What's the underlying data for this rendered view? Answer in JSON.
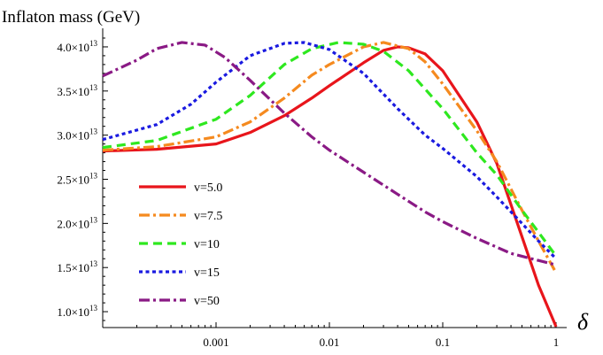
{
  "chart_data": {
    "type": "line",
    "title": "Inflaton mass (GeV)",
    "xlabel": "δ",
    "ylabel": "",
    "x_scale": "log",
    "xlim": [
      0.0001,
      1
    ],
    "ylim": [
      8200000000000.0,
      41500000000000.0
    ],
    "x_ticks": [
      {
        "value": 0.001,
        "label": "0.001"
      },
      {
        "value": 0.01,
        "label": "0.01"
      },
      {
        "value": 0.1,
        "label": "0.1"
      },
      {
        "value": 1,
        "label": "1"
      }
    ],
    "y_ticks": [
      {
        "value": 10000000000000.0,
        "label_mantissa": "1.0",
        "label_exp": "13"
      },
      {
        "value": 15000000000000.0,
        "label_mantissa": "1.5",
        "label_exp": "13"
      },
      {
        "value": 20000000000000.0,
        "label_mantissa": "2.0",
        "label_exp": "13"
      },
      {
        "value": 25000000000000.0,
        "label_mantissa": "2.5",
        "label_exp": "13"
      },
      {
        "value": 30000000000000.0,
        "label_mantissa": "3.0",
        "label_exp": "13"
      },
      {
        "value": 35000000000000.0,
        "label_mantissa": "3.5",
        "label_exp": "13"
      },
      {
        "value": 40000000000000.0,
        "label_mantissa": "4.0",
        "label_exp": "13"
      }
    ],
    "legend_position": "left",
    "series": [
      {
        "name": "v=5.0",
        "color": "#e8151b",
        "style": "solid",
        "points": [
          [
            0.0001,
            28200000000000.0
          ],
          [
            0.0003,
            28400000000000.0
          ],
          [
            0.001,
            29000000000000.0
          ],
          [
            0.002,
            30300000000000.0
          ],
          [
            0.004,
            32200000000000.0
          ],
          [
            0.007,
            34200000000000.0
          ],
          [
            0.01,
            35600000000000.0
          ],
          [
            0.02,
            38200000000000.0
          ],
          [
            0.03,
            39600000000000.0
          ],
          [
            0.04,
            40000000000000.0
          ],
          [
            0.05,
            39900000000000.0
          ],
          [
            0.07,
            39200000000000.0
          ],
          [
            0.1,
            37300000000000.0
          ],
          [
            0.2,
            31500000000000.0
          ],
          [
            0.3,
            26800000000000.0
          ],
          [
            0.5,
            18500000000000.0
          ],
          [
            0.7,
            13000000000000.0
          ],
          [
            1,
            8300000000000.0
          ]
        ]
      },
      {
        "name": "v=7.5",
        "color": "#f58a1f",
        "style": "dashdot",
        "points": [
          [
            0.0001,
            28300000000000.0
          ],
          [
            0.0003,
            28700000000000.0
          ],
          [
            0.001,
            29800000000000.0
          ],
          [
            0.002,
            31500000000000.0
          ],
          [
            0.004,
            34200000000000.0
          ],
          [
            0.007,
            36800000000000.0
          ],
          [
            0.01,
            38000000000000.0
          ],
          [
            0.02,
            40000000000000.0
          ],
          [
            0.03,
            40500000000000.0
          ],
          [
            0.05,
            39800000000000.0
          ],
          [
            0.07,
            38300000000000.0
          ],
          [
            0.1,
            35800000000000.0
          ],
          [
            0.2,
            30500000000000.0
          ],
          [
            0.3,
            27000000000000.0
          ],
          [
            0.5,
            21500000000000.0
          ],
          [
            0.7,
            18000000000000.0
          ],
          [
            1,
            14400000000000.0
          ]
        ]
      },
      {
        "name": "v=10",
        "color": "#2ee81f",
        "style": "dashed",
        "points": [
          [
            0.0001,
            28600000000000.0
          ],
          [
            0.0003,
            29400000000000.0
          ],
          [
            0.001,
            31800000000000.0
          ],
          [
            0.002,
            34500000000000.0
          ],
          [
            0.004,
            38000000000000.0
          ],
          [
            0.007,
            39800000000000.0
          ],
          [
            0.012,
            40500000000000.0
          ],
          [
            0.02,
            40300000000000.0
          ],
          [
            0.03,
            39500000000000.0
          ],
          [
            0.05,
            37300000000000.0
          ],
          [
            0.1,
            33000000000000.0
          ],
          [
            0.2,
            28000000000000.0
          ],
          [
            0.3,
            25500000000000.0
          ],
          [
            0.5,
            21500000000000.0
          ],
          [
            0.7,
            19000000000000.0
          ],
          [
            1,
            16300000000000.0
          ]
        ]
      },
      {
        "name": "v=15",
        "color": "#1a1ae0",
        "style": "dotted",
        "points": [
          [
            0.0001,
            29500000000000.0
          ],
          [
            0.0003,
            31200000000000.0
          ],
          [
            0.0006,
            33500000000000.0
          ],
          [
            0.001,
            36000000000000.0
          ],
          [
            0.002,
            39000000000000.0
          ],
          [
            0.004,
            40400000000000.0
          ],
          [
            0.006,
            40500000000000.0
          ],
          [
            0.01,
            39700000000000.0
          ],
          [
            0.02,
            37000000000000.0
          ],
          [
            0.04,
            33000000000000.0
          ],
          [
            0.07,
            30000000000000.0
          ],
          [
            0.1,
            28500000000000.0
          ],
          [
            0.2,
            25300000000000.0
          ],
          [
            0.3,
            23000000000000.0
          ],
          [
            0.5,
            20000000000000.0
          ],
          [
            0.7,
            18000000000000.0
          ],
          [
            1,
            16000000000000.0
          ]
        ]
      },
      {
        "name": "v=50",
        "color": "#8a1a85",
        "style": "dashdot",
        "points": [
          [
            0.0001,
            36700000000000.0
          ],
          [
            0.0002,
            38500000000000.0
          ],
          [
            0.0003,
            39800000000000.0
          ],
          [
            0.0005,
            40500000000000.0
          ],
          [
            0.0008,
            40200000000000.0
          ],
          [
            0.0012,
            38800000000000.0
          ],
          [
            0.002,
            36200000000000.0
          ],
          [
            0.004,
            32500000000000.0
          ],
          [
            0.007,
            29800000000000.0
          ],
          [
            0.01,
            28300000000000.0
          ],
          [
            0.02,
            25800000000000.0
          ],
          [
            0.04,
            23300000000000.0
          ],
          [
            0.07,
            21300000000000.0
          ],
          [
            0.1,
            20200000000000.0
          ],
          [
            0.2,
            18300000000000.0
          ],
          [
            0.4,
            16600000000000.0
          ],
          [
            0.7,
            15800000000000.0
          ],
          [
            1,
            15300000000000.0
          ]
        ]
      }
    ]
  }
}
